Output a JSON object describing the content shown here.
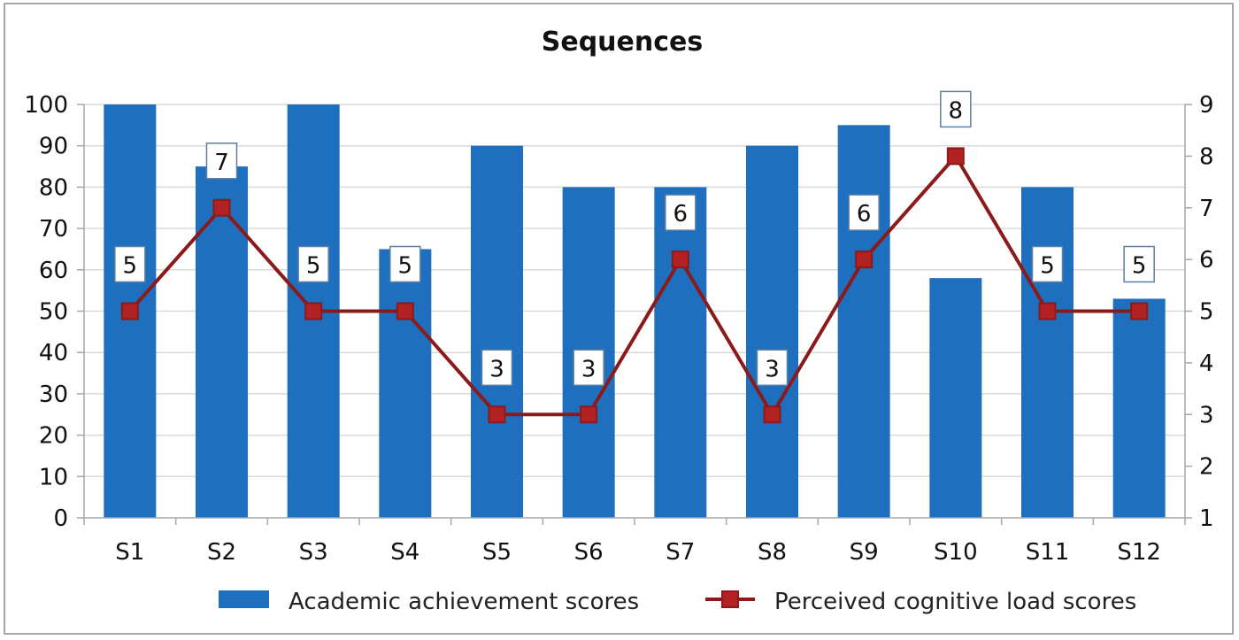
{
  "chart_data": {
    "type": "bar",
    "title": "Sequences",
    "categories": [
      "S1",
      "S2",
      "S3",
      "S4",
      "S5",
      "S6",
      "S7",
      "S8",
      "S9",
      "S10",
      "S11",
      "S12"
    ],
    "series": [
      {
        "name": "Academic achievement scores",
        "kind": "bar",
        "axis": "left",
        "values": [
          100,
          85,
          100,
          65,
          90,
          80,
          80,
          90,
          95,
          58,
          80,
          53
        ]
      },
      {
        "name": "Perceived cognitive load scores",
        "kind": "line",
        "axis": "right",
        "values": [
          5,
          7,
          5,
          5,
          3,
          3,
          6,
          3,
          6,
          8,
          5,
          5
        ]
      }
    ],
    "y_left": {
      "range": [
        0,
        100
      ],
      "ticks": [
        0,
        10,
        20,
        30,
        40,
        50,
        60,
        70,
        80,
        90,
        100
      ]
    },
    "y_right": {
      "range": [
        1,
        9
      ],
      "ticks": [
        1,
        2,
        3,
        4,
        5,
        6,
        7,
        8,
        9
      ]
    },
    "grid": true,
    "legend_position": "bottom",
    "data_labels": "line-series",
    "colors": {
      "bar": "#1f6fbf",
      "line": "#8b1a1a",
      "marker": "#b22222",
      "grid": "#d9d9d9",
      "axis": "#a6a6a6"
    }
  }
}
